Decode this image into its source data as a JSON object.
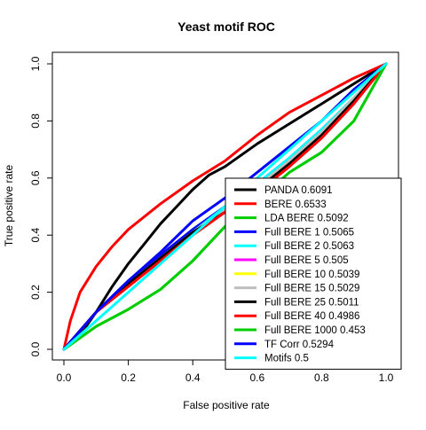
{
  "chart_data": {
    "type": "line",
    "title": "Yeast motif ROC",
    "xlabel": "False positive rate",
    "ylabel": "True positive rate",
    "xlim": [
      0,
      1
    ],
    "ylim": [
      0,
      1
    ],
    "xticks": [
      "0.0",
      "0.2",
      "0.4",
      "0.6",
      "0.8",
      "1.0"
    ],
    "yticks": [
      "0.0",
      "0.2",
      "0.4",
      "0.6",
      "0.8",
      "1.0"
    ],
    "grid": false,
    "legend_position": "bottom-right",
    "series": [
      {
        "name": "PANDA 0.6091",
        "color": "#000000",
        "x": [
          0,
          0.05,
          0.1,
          0.15,
          0.2,
          0.25,
          0.3,
          0.35,
          0.4,
          0.45,
          0.5,
          0.6,
          0.7,
          0.8,
          0.9,
          1.0
        ],
        "y": [
          0,
          0.05,
          0.13,
          0.22,
          0.3,
          0.37,
          0.44,
          0.5,
          0.56,
          0.61,
          0.64,
          0.72,
          0.79,
          0.86,
          0.93,
          1.0
        ]
      },
      {
        "name": "BERE 0.6533",
        "color": "#ff0000",
        "x": [
          0,
          0.02,
          0.05,
          0.1,
          0.15,
          0.2,
          0.3,
          0.4,
          0.5,
          0.6,
          0.7,
          0.8,
          0.9,
          1.0
        ],
        "y": [
          0,
          0.1,
          0.2,
          0.29,
          0.36,
          0.42,
          0.51,
          0.59,
          0.66,
          0.75,
          0.83,
          0.89,
          0.95,
          1.0
        ]
      },
      {
        "name": "LDA BERE 0.5092",
        "color": "#00cd00",
        "x": [
          0,
          0.1,
          0.2,
          0.3,
          0.4,
          0.5,
          0.6,
          0.7,
          0.8,
          0.9,
          0.97,
          1.0
        ],
        "y": [
          0,
          0.08,
          0.14,
          0.21,
          0.31,
          0.43,
          0.52,
          0.62,
          0.69,
          0.8,
          0.94,
          1.0
        ]
      },
      {
        "name": "Full BERE 1 0.5065",
        "color": "#0000ff",
        "x": [
          0,
          0.1,
          0.2,
          0.3,
          0.4,
          0.5,
          0.6,
          0.7,
          0.8,
          0.9,
          1.0
        ],
        "y": [
          0,
          0.13,
          0.24,
          0.33,
          0.42,
          0.5,
          0.58,
          0.67,
          0.77,
          0.88,
          1.0
        ]
      },
      {
        "name": "Full BERE 2 0.5063",
        "color": "#00ffff",
        "x": [
          0,
          0.1,
          0.2,
          0.3,
          0.4,
          0.5,
          0.6,
          0.7,
          0.8,
          0.9,
          1.0
        ],
        "y": [
          0,
          0.13,
          0.23,
          0.32,
          0.41,
          0.5,
          0.58,
          0.67,
          0.77,
          0.88,
          1.0
        ]
      },
      {
        "name": "Full BERE 5 0.505",
        "color": "#ff00ff",
        "x": [
          0,
          0.1,
          0.2,
          0.3,
          0.4,
          0.5,
          0.6,
          0.7,
          0.8,
          0.9,
          1.0
        ],
        "y": [
          0,
          0.13,
          0.23,
          0.32,
          0.41,
          0.49,
          0.57,
          0.66,
          0.76,
          0.88,
          1.0
        ]
      },
      {
        "name": "Full BERE 10 0.5039",
        "color": "#ffff00",
        "x": [
          0,
          0.1,
          0.2,
          0.3,
          0.4,
          0.5,
          0.6,
          0.7,
          0.8,
          0.9,
          1.0
        ],
        "y": [
          0,
          0.13,
          0.23,
          0.32,
          0.41,
          0.49,
          0.57,
          0.66,
          0.76,
          0.88,
          1.0
        ]
      },
      {
        "name": "Full BERE 15 0.5029",
        "color": "#bebebe",
        "x": [
          0,
          0.1,
          0.2,
          0.3,
          0.4,
          0.5,
          0.6,
          0.7,
          0.8,
          0.9,
          1.0
        ],
        "y": [
          0,
          0.13,
          0.23,
          0.32,
          0.41,
          0.49,
          0.57,
          0.66,
          0.76,
          0.88,
          1.0
        ]
      },
      {
        "name": "Full BERE 25 0.5011",
        "color": "#000000",
        "x": [
          0,
          0.1,
          0.2,
          0.3,
          0.4,
          0.5,
          0.6,
          0.7,
          0.8,
          0.9,
          1.0
        ],
        "y": [
          0,
          0.13,
          0.23,
          0.32,
          0.41,
          0.48,
          0.56,
          0.65,
          0.75,
          0.87,
          1.0
        ]
      },
      {
        "name": "Full BERE 40 0.4986",
        "color": "#ff0000",
        "x": [
          0,
          0.1,
          0.2,
          0.3,
          0.4,
          0.5,
          0.6,
          0.7,
          0.8,
          0.9,
          1.0
        ],
        "y": [
          0,
          0.13,
          0.22,
          0.31,
          0.4,
          0.48,
          0.55,
          0.64,
          0.74,
          0.86,
          1.0
        ]
      },
      {
        "name": "Full BERE 1000 0.453",
        "color": "#00cd00",
        "x": [
          0,
          0.1,
          0.2,
          0.3,
          0.4,
          0.5,
          0.6,
          0.7,
          0.8,
          0.9,
          1.0
        ],
        "y": [
          0,
          0.08,
          0.14,
          0.21,
          0.31,
          0.43,
          0.52,
          0.62,
          0.69,
          0.8,
          1.0
        ]
      },
      {
        "name": "TF Corr 0.5294",
        "color": "#0000ff",
        "x": [
          0,
          0.1,
          0.2,
          0.3,
          0.4,
          0.5,
          0.6,
          0.7,
          0.8,
          0.9,
          1.0
        ],
        "y": [
          0,
          0.13,
          0.24,
          0.34,
          0.45,
          0.53,
          0.62,
          0.71,
          0.8,
          0.91,
          1.0
        ]
      },
      {
        "name": "Motifs 0.5",
        "color": "#00ffff",
        "x": [
          0,
          1.0
        ],
        "y": [
          0,
          1.0
        ]
      }
    ]
  }
}
